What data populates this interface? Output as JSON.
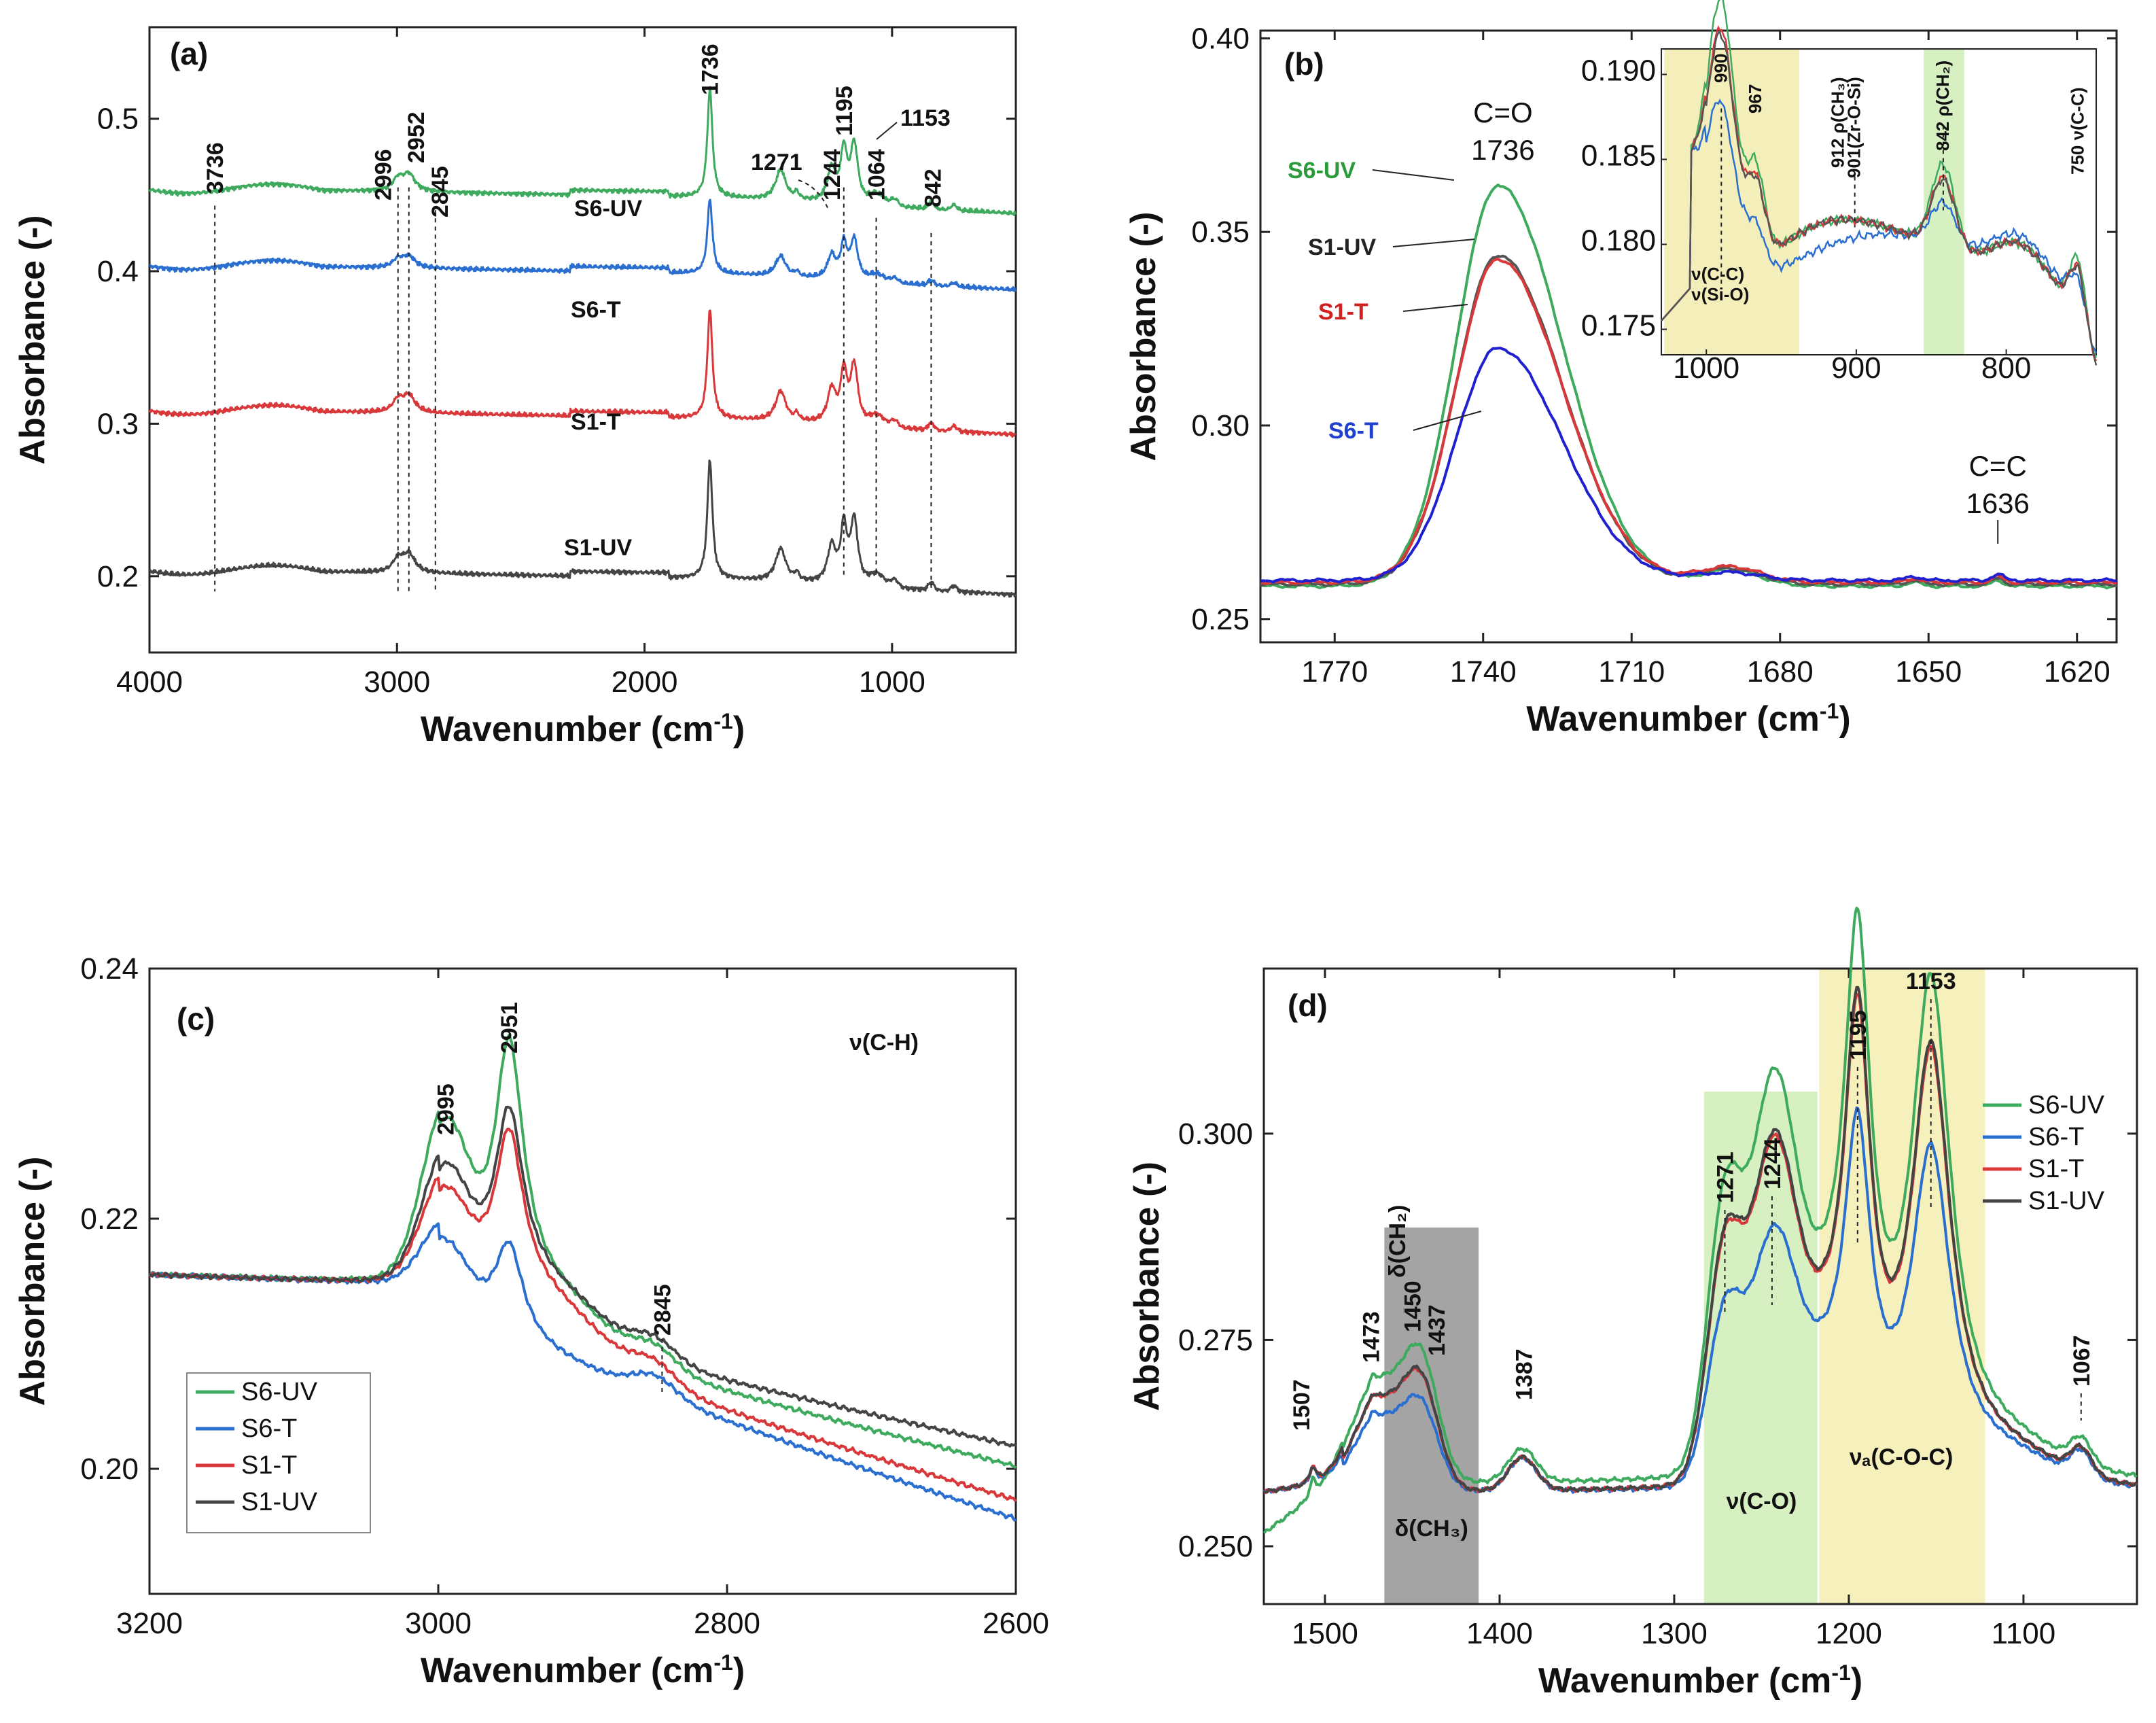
{
  "chart_data": [
    {
      "type": "line",
      "panel": "(a)",
      "xlabel": "Wavenumber (cm⁻¹)",
      "ylabel": "Absorbance (-)",
      "xlim": [
        4000,
        500
      ],
      "ylim": [
        0.15,
        0.56
      ],
      "xticks": [
        4000,
        3000,
        2000,
        1000
      ],
      "yticks": [
        0.2,
        0.3,
        0.4,
        0.5
      ],
      "tick_labels_x": [
        "4000",
        "3000",
        "2000",
        "1000"
      ],
      "tick_labels_y": [
        "0.2",
        "0.3",
        "0.4",
        "0.5"
      ],
      "series": [
        {
          "name": "S6-UV",
          "color": "#3daa5e",
          "label_color": "#111111",
          "offset": 0.45
        },
        {
          "name": "S6-T",
          "color": "#2a6fd0",
          "label_color": "#111111",
          "offset": 0.4
        },
        {
          "name": "S1-T",
          "color": "#d9383a",
          "label_color": "#111111",
          "offset": 0.305
        },
        {
          "name": "S1-UV",
          "color": "#444444",
          "label_color": "#111111",
          "offset": 0.2
        }
      ],
      "annotations": [
        "3736",
        "2996",
        "2952",
        "2845",
        "1736",
        "1271",
        "1244",
        "1195",
        "1153",
        "1064",
        "842"
      ],
      "peaks": [
        {
          "x": 1736,
          "h": 0.065,
          "w": 12
        },
        {
          "x": 1450,
          "h": 0.018,
          "w": 25
        },
        {
          "x": 1244,
          "h": 0.02,
          "w": 20
        },
        {
          "x": 1195,
          "h": 0.03,
          "w": 15
        },
        {
          "x": 1153,
          "h": 0.035,
          "w": 18
        },
        {
          "x": 2952,
          "h": 0.01,
          "w": 30
        },
        {
          "x": 2996,
          "h": 0.007,
          "w": 25
        }
      ]
    },
    {
      "type": "line",
      "panel": "(b)",
      "xlabel": "Wavenumber (cm⁻¹)",
      "ylabel": "Absorbance (-)",
      "xlim": [
        1785,
        1612
      ],
      "ylim": [
        0.244,
        0.402
      ],
      "xticks": [
        1770,
        1740,
        1710,
        1680,
        1650,
        1620
      ],
      "yticks": [
        0.25,
        0.3,
        0.35,
        0.4
      ],
      "tick_labels_x": [
        "1770",
        "1740",
        "1710",
        "1680",
        "1650",
        "1620"
      ],
      "tick_labels_y": [
        "0.25",
        "0.30",
        "0.35",
        "0.40"
      ],
      "series": [
        {
          "name": "S6-UV",
          "color": "#3daa5e",
          "label_color": "#2a9a3a",
          "peak": 0.362
        },
        {
          "name": "S1-UV",
          "color": "#555555",
          "label_color": "#222222",
          "peak": 0.344
        },
        {
          "name": "S1-T",
          "color": "#d9383a",
          "label_color": "#d02020",
          "peak": 0.343
        },
        {
          "name": "S6-T",
          "color": "#2020d0",
          "label_color": "#2040d0",
          "peak": 0.32
        }
      ],
      "annotations": [
        "C=O",
        "1736",
        "C=C",
        "1636"
      ],
      "inset": {
        "xlim": [
          1030,
          740
        ],
        "ylim": [
          0.1735,
          0.1915
        ],
        "xticks": [
          1000,
          900,
          800
        ],
        "yticks": [
          0.175,
          0.18,
          0.185,
          0.19
        ],
        "tick_labels_x": [
          "1000",
          "900",
          "800"
        ],
        "tick_labels_y": [
          "0.175",
          "0.180",
          "0.185",
          "0.190"
        ],
        "annotations": [
          "990",
          "967",
          "912 ρ(CH₃)",
          "901(Zr-O-Si)",
          "842 ρ(CH₂)",
          "750 ν(C-C)",
          "ν(C-C)",
          "ν(Si-O)"
        ]
      }
    },
    {
      "type": "line",
      "panel": "(c)",
      "xlabel": "Wavenumber (cm⁻¹)",
      "ylabel": "Absorbance (-)",
      "xlim": [
        3200,
        2600
      ],
      "ylim": [
        0.19,
        0.24
      ],
      "xticks": [
        3200,
        3000,
        2800,
        2600
      ],
      "yticks": [
        0.2,
        0.22,
        0.24
      ],
      "tick_labels_x": [
        "3200",
        "3000",
        "2800",
        "2600"
      ],
      "tick_labels_y": [
        "0.20",
        "0.22",
        "0.24"
      ],
      "series": [
        {
          "name": "S6-UV",
          "color": "#3daa5e"
        },
        {
          "name": "S6-T",
          "color": "#2a6fd0"
        },
        {
          "name": "S1-T",
          "color": "#d9383a"
        },
        {
          "name": "S1-UV",
          "color": "#444444"
        }
      ],
      "annotations": [
        "2995",
        "2951",
        "2845",
        "ν(C-H)"
      ]
    },
    {
      "type": "line",
      "panel": "(d)",
      "xlabel": "Wavenumber (cm⁻¹)",
      "ylabel": "Absorbance (-)",
      "xlim": [
        1535,
        1035
      ],
      "ylim": [
        0.243,
        0.32
      ],
      "xticks": [
        1500,
        1400,
        1300,
        1200,
        1100
      ],
      "yticks": [
        0.25,
        0.275,
        0.3
      ],
      "tick_labels_x": [
        "1500",
        "1400",
        "1300",
        "1200",
        "1100"
      ],
      "tick_labels_y": [
        "0.250",
        "0.275",
        "0.300"
      ],
      "series": [
        {
          "name": "S6-UV",
          "color": "#3daa5e"
        },
        {
          "name": "S6-T",
          "color": "#2a6fd0"
        },
        {
          "name": "S1-T",
          "color": "#d9383a"
        },
        {
          "name": "S1-UV",
          "color": "#444444"
        }
      ],
      "annotations": [
        "1507",
        "1473",
        "δ(CH₂)",
        "1450",
        "1437",
        "1387",
        "1271",
        "1244",
        "1195",
        "1153",
        "1067",
        "δ(CH₃)",
        "ν(C-O)",
        "νₐ(C-O-C)"
      ]
    }
  ]
}
